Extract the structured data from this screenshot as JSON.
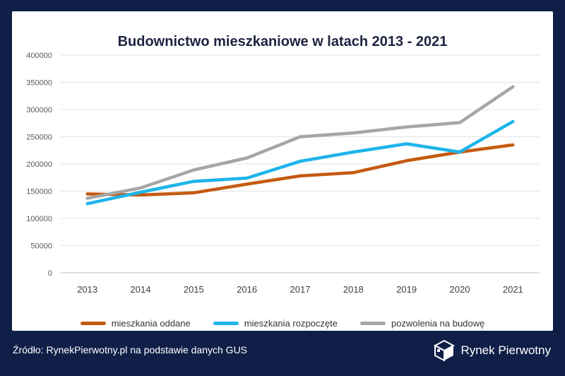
{
  "chart_data": {
    "type": "line",
    "title": "Budownictwo mieszkaniowe w latach 2013 - 2021",
    "categories": [
      "2013",
      "2014",
      "2015",
      "2016",
      "2017",
      "2018",
      "2019",
      "2020",
      "2021"
    ],
    "ylim": [
      0,
      400000
    ],
    "yticks": [
      "0",
      "50000",
      "100000",
      "150000",
      "200000",
      "250000",
      "300000",
      "350000",
      "400000"
    ],
    "grid": true,
    "legend_position": "bottom",
    "series": [
      {
        "name": "mieszkania oddane",
        "color": "#c55a11",
        "values": [
          145000,
          143000,
          147000,
          163000,
          178000,
          184000,
          206000,
          222000,
          235000
        ]
      },
      {
        "name": "mieszkania rozpoczęte",
        "color": "#1eb4ea",
        "values": [
          127000,
          148000,
          168000,
          174000,
          205000,
          222000,
          237000,
          222000,
          278000
        ]
      },
      {
        "name": "pozwolenia na budowę",
        "color": "#a6a6a6",
        "values": [
          137000,
          156000,
          189000,
          211000,
          250000,
          257000,
          268000,
          276000,
          342000
        ]
      }
    ]
  },
  "footer": {
    "source": "Źródło: RynekPierwotny.pl na podstawie danych GUS",
    "brand": "Rynek Pierwotny"
  },
  "colors": {
    "background": "#0f1f47",
    "card": "#ffffff"
  }
}
